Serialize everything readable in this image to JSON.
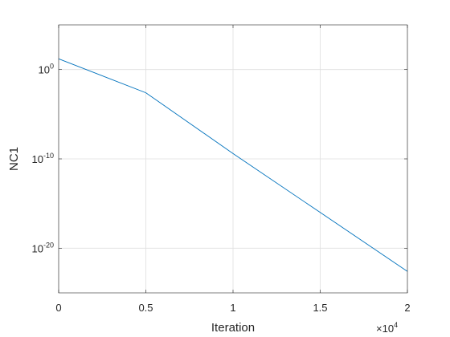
{
  "chart_data": {
    "type": "line",
    "xlabel": "Iteration",
    "ylabel": "NC1",
    "x_scale_exponent_label": {
      "base": "×10",
      "exp": "4"
    },
    "xlim": [
      0,
      20000
    ],
    "ylim_exponent": [
      -25,
      5
    ],
    "yscale": "log",
    "grid": true,
    "x_ticks": [
      {
        "value": 0,
        "label": "0"
      },
      {
        "value": 5000,
        "label": "0.5"
      },
      {
        "value": 10000,
        "label": "1"
      },
      {
        "value": 15000,
        "label": "1.5"
      },
      {
        "value": 20000,
        "label": "2"
      }
    ],
    "y_ticks": [
      {
        "exponent": 0,
        "base": "10",
        "exp": "0"
      },
      {
        "exponent": -10,
        "base": "10",
        "exp": "-10"
      },
      {
        "exponent": -20,
        "base": "10",
        "exp": "-20"
      }
    ],
    "series": [
      {
        "color": "#0072bd",
        "x": [
          0,
          5000,
          10000,
          15000,
          20000
        ],
        "y_log10": [
          1.2,
          -2.6,
          -9.4,
          -16.0,
          -22.6
        ]
      }
    ]
  }
}
